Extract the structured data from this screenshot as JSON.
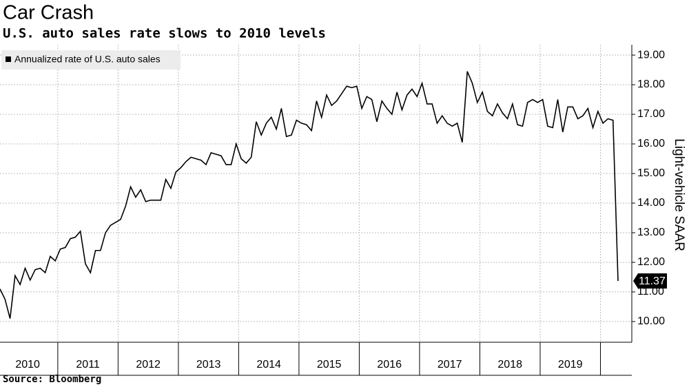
{
  "chart_data": {
    "type": "line",
    "title": "Car Crash",
    "subtitle": "U.S. auto sales rate slows to 2010 levels",
    "source": "Source: Bloomberg",
    "y_label": "Light-vehicle SAAR",
    "grid": true,
    "legend": "top-left",
    "categories": [
      null,
      null,
      null,
      null,
      null,
      null,
      "2010",
      null,
      null,
      null,
      null,
      null,
      null,
      null,
      null,
      null,
      null,
      null,
      "2011",
      null,
      null,
      null,
      null,
      null,
      null,
      null,
      null,
      null,
      null,
      null,
      "2012",
      null,
      null,
      null,
      null,
      null,
      null,
      null,
      null,
      null,
      null,
      null,
      "2013",
      null,
      null,
      null,
      null,
      null,
      null,
      null,
      null,
      null,
      null,
      null,
      "2014",
      null,
      null,
      null,
      null,
      null,
      null,
      null,
      null,
      null,
      null,
      null,
      "2015",
      null,
      null,
      null,
      null,
      null,
      null,
      null,
      null,
      null,
      null,
      null,
      "2016",
      null,
      null,
      null,
      null,
      null,
      null,
      null,
      null,
      null,
      null,
      null,
      "2017",
      null,
      null,
      null,
      null,
      null,
      null,
      null,
      null,
      null,
      null,
      null,
      "2018",
      null,
      null,
      null,
      null,
      null,
      null,
      null,
      null,
      null,
      null,
      null,
      "2019",
      null,
      null,
      null,
      null,
      null,
      null,
      null,
      null,
      null
    ],
    "series": [
      {
        "name": "Annualized rate of U.S. auto sales",
        "color": "#000000",
        "values": [
          11.1,
          10.75,
          10.1,
          11.55,
          11.25,
          11.8,
          11.4,
          11.75,
          11.8,
          11.65,
          12.2,
          12.05,
          12.45,
          12.5,
          12.8,
          12.85,
          13.05,
          11.95,
          11.65,
          12.4,
          12.4,
          13.0,
          13.25,
          13.35,
          13.45,
          13.9,
          14.55,
          14.2,
          14.45,
          14.05,
          14.1,
          14.1,
          14.1,
          14.8,
          14.5,
          15.05,
          15.2,
          15.4,
          15.55,
          15.5,
          15.45,
          15.3,
          15.7,
          15.65,
          15.6,
          15.3,
          15.3,
          16.0,
          15.5,
          15.35,
          15.55,
          16.75,
          16.3,
          16.7,
          16.9,
          16.5,
          17.2,
          16.25,
          16.3,
          16.8,
          16.7,
          16.65,
          16.45,
          17.45,
          16.9,
          17.65,
          17.3,
          17.45,
          17.7,
          17.95,
          17.9,
          17.95,
          17.2,
          17.6,
          17.5,
          16.75,
          17.45,
          17.2,
          17.0,
          17.75,
          17.15,
          17.65,
          17.85,
          17.6,
          18.05,
          17.35,
          17.35,
          16.7,
          16.95,
          16.7,
          16.6,
          16.7,
          16.05,
          18.45,
          18.05,
          17.4,
          17.75,
          17.1,
          16.95,
          17.35,
          17.05,
          16.85,
          17.35,
          16.65,
          16.6,
          17.4,
          17.5,
          17.4,
          17.5,
          16.6,
          16.55,
          17.5,
          16.4,
          17.25,
          17.25,
          16.85,
          16.95,
          17.2,
          16.55,
          17.1,
          16.7,
          16.85,
          16.8,
          11.37
        ],
        "value_labels": [
          null,
          null,
          null,
          null,
          null,
          null,
          null,
          null,
          null,
          null,
          null,
          null,
          null,
          null,
          null,
          null,
          null,
          null,
          null,
          null,
          null,
          null,
          null,
          null,
          null,
          null,
          null,
          null,
          null,
          null,
          null,
          null,
          null,
          null,
          null,
          null,
          null,
          null,
          null,
          null,
          null,
          null,
          null,
          null,
          null,
          null,
          null,
          null,
          null,
          null,
          null,
          null,
          null,
          null,
          null,
          null,
          null,
          null,
          null,
          null,
          null,
          null,
          null,
          null,
          null,
          null,
          null,
          null,
          null,
          null,
          null,
          null,
          null,
          null,
          null,
          null,
          null,
          null,
          null,
          null,
          null,
          null,
          null,
          null,
          null,
          null,
          null,
          null,
          null,
          null,
          null,
          null,
          null,
          null,
          null,
          null,
          null,
          null,
          null,
          null,
          null,
          null,
          null,
          null,
          null,
          null,
          null,
          null,
          null,
          null,
          null,
          null,
          null,
          null,
          null,
          null,
          null,
          null,
          null,
          null,
          null,
          null,
          null,
          "11.37"
        ]
      }
    ],
    "ylim": [
      9.3,
      19.35
    ],
    "yticks": [
      {
        "value": 10,
        "label": "10.00"
      },
      {
        "value": 11,
        "label": "11.00"
      },
      {
        "value": 12,
        "label": "12.00"
      },
      {
        "value": 13,
        "label": "13.00"
      },
      {
        "value": 14,
        "label": "14.00"
      },
      {
        "value": 15,
        "label": "15.00"
      },
      {
        "value": 16,
        "label": "16.00"
      },
      {
        "value": 17,
        "label": "17.00"
      },
      {
        "value": 18,
        "label": "18.00"
      },
      {
        "value": 19,
        "label": "19.00"
      }
    ]
  }
}
